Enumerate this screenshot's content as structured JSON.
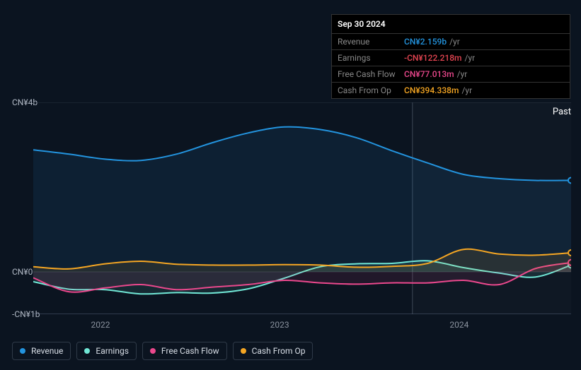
{
  "tooltip": {
    "date": "Sep 30 2024",
    "rows": [
      {
        "label": "Revenue",
        "value": "CN¥2.159b",
        "unit": "/yr",
        "color": "#2394df"
      },
      {
        "label": "Earnings",
        "value": "-CN¥122.218m",
        "unit": "/yr",
        "color": "#e64552"
      },
      {
        "label": "Free Cash Flow",
        "value": "CN¥77.013m",
        "unit": "/yr",
        "color": "#eb488d"
      },
      {
        "label": "Cash From Op",
        "value": "CN¥394.338m",
        "unit": "/yr",
        "color": "#f5a623"
      }
    ]
  },
  "chart": {
    "type": "area",
    "background": "#0b1420",
    "past_label": "Past",
    "y_axis": {
      "ticks": [
        {
          "label": "CN¥4b",
          "value": 4000
        },
        {
          "label": "CN¥0",
          "value": 0
        },
        {
          "label": "-CN¥1b",
          "value": -1000
        }
      ],
      "min": -1000,
      "max": 4000,
      "tick_color": "#b0b8c4"
    },
    "x_axis": {
      "categories": [
        "2022",
        "2023",
        "2024"
      ],
      "positions": [
        0.125,
        0.458,
        0.792
      ],
      "tick_color": "#8a929e"
    },
    "cursor_x": 0.705,
    "series": [
      {
        "name": "Revenue",
        "color": "#2394df",
        "fill_opacity": 0.1,
        "line_width": 2,
        "values": [
          2880,
          2780,
          2660,
          2630,
          2780,
          3050,
          3280,
          3420,
          3360,
          3170,
          2860,
          2570,
          2300,
          2200,
          2159,
          2159
        ]
      },
      {
        "name": "Earnings",
        "color": "#71e7d6",
        "fill_opacity": 0.1,
        "line_width": 2,
        "values": [
          -230,
          -410,
          -420,
          -520,
          -490,
          -500,
          -400,
          -150,
          120,
          190,
          200,
          260,
          100,
          -30,
          -122,
          160
        ]
      },
      {
        "name": "Free Cash Flow",
        "color": "#eb488d",
        "fill_opacity": 0.1,
        "line_width": 2,
        "values": [
          -140,
          -470,
          -380,
          -300,
          -420,
          -360,
          -300,
          -200,
          -260,
          -290,
          -260,
          -260,
          -200,
          -300,
          77,
          220
        ]
      },
      {
        "name": "Cash From Op",
        "color": "#f5a623",
        "fill_opacity": 0.1,
        "line_width": 2,
        "values": [
          120,
          70,
          190,
          250,
          180,
          160,
          160,
          170,
          160,
          110,
          130,
          200,
          530,
          420,
          394,
          450
        ]
      }
    ],
    "grid_color": "#2a3340"
  },
  "legend": [
    {
      "label": "Revenue",
      "color": "#2394df"
    },
    {
      "label": "Earnings",
      "color": "#71e7d6"
    },
    {
      "label": "Free Cash Flow",
      "color": "#eb488d"
    },
    {
      "label": "Cash From Op",
      "color": "#f5a623"
    }
  ]
}
